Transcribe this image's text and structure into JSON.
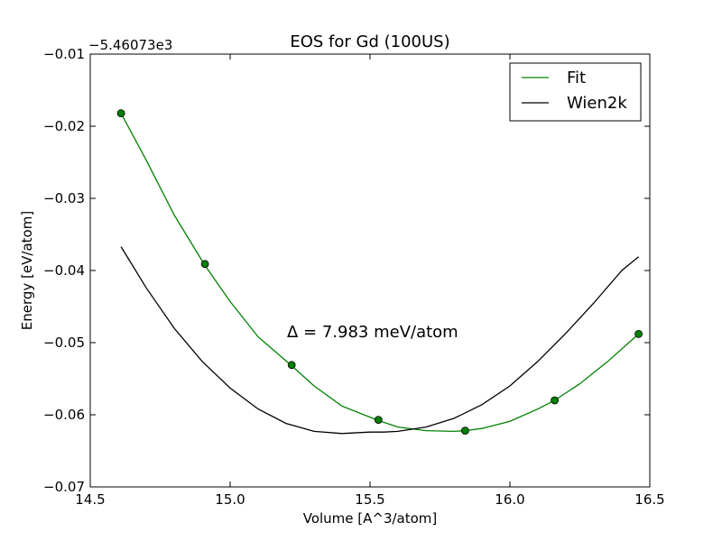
{
  "chart_data": {
    "type": "line",
    "title": "EOS for Gd (100US)",
    "xlabel": "Volume [A^3/atom]",
    "ylabel": "Energy [eV/atom]",
    "offset_label": "−5.46073e3",
    "xlim": [
      14.5,
      16.5
    ],
    "ylim": [
      -0.07,
      -0.01
    ],
    "x_ticks": [
      14.5,
      15.0,
      15.5,
      16.0,
      16.5
    ],
    "x_tick_labels": [
      "14.5",
      "15.0",
      "15.5",
      "16.0",
      "16.5"
    ],
    "y_ticks": [
      -0.07,
      -0.06,
      -0.05,
      -0.04,
      -0.03,
      -0.02,
      -0.01
    ],
    "y_tick_labels": [
      "−0.07",
      "−0.06",
      "−0.05",
      "−0.04",
      "−0.03",
      "−0.02",
      "−0.01"
    ],
    "grid": false,
    "legend_position": "top-right",
    "annotation": "Δ = 7.983 meV/atom",
    "series": [
      {
        "name": "Fit",
        "color": "#008000",
        "kind": "curve",
        "x": [
          14.61,
          14.7,
          14.8,
          14.91,
          15.0,
          15.1,
          15.22,
          15.3,
          15.4,
          15.53,
          15.6,
          15.7,
          15.8,
          15.84,
          15.9,
          16.0,
          16.1,
          16.16,
          16.25,
          16.35,
          16.46
        ],
        "y": [
          -0.0182,
          -0.0247,
          -0.0323,
          -0.0393,
          -0.0443,
          -0.0492,
          -0.0532,
          -0.056,
          -0.0588,
          -0.0608,
          -0.0617,
          -0.0622,
          -0.0623,
          -0.0622,
          -0.0619,
          -0.0609,
          -0.0592,
          -0.058,
          -0.0557,
          -0.0526,
          -0.0488
        ]
      },
      {
        "name": "Wien2k",
        "color": "#000000",
        "kind": "curve",
        "x": [
          14.61,
          14.7,
          14.8,
          14.9,
          15.0,
          15.1,
          15.2,
          15.3,
          15.4,
          15.5,
          15.55,
          15.6,
          15.7,
          15.8,
          15.9,
          16.0,
          16.1,
          16.2,
          16.3,
          16.4,
          16.46
        ],
        "y": [
          -0.0367,
          -0.0424,
          -0.048,
          -0.0526,
          -0.0563,
          -0.0592,
          -0.0612,
          -0.0623,
          -0.0626,
          -0.0624,
          -0.0624,
          -0.0623,
          -0.0617,
          -0.0605,
          -0.0586,
          -0.056,
          -0.0526,
          -0.0487,
          -0.0445,
          -0.04,
          -0.0381
        ]
      },
      {
        "name": "",
        "color": "#008000",
        "kind": "markers",
        "x": [
          14.61,
          14.91,
          15.22,
          15.53,
          15.84,
          16.16,
          16.46
        ],
        "y": [
          -0.0182,
          -0.0391,
          -0.0531,
          -0.0607,
          -0.0622,
          -0.058,
          -0.0488
        ]
      }
    ]
  }
}
